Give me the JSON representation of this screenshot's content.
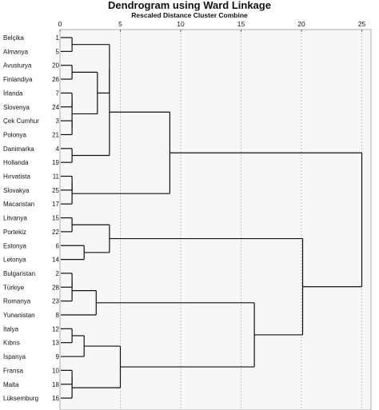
{
  "chart_data": {
    "type": "dendrogram",
    "title": "Dendrogram using Ward Linkage",
    "subtitle": "Rescaled Distance Cluster Combine",
    "xlim": [
      0,
      25
    ],
    "xticks": [
      0,
      5,
      10,
      15,
      20,
      25
    ],
    "grid": true,
    "leaves": [
      {
        "label": "Belçika",
        "case": 1
      },
      {
        "label": "Almanya",
        "case": 5
      },
      {
        "label": "Avusturya",
        "case": 20
      },
      {
        "label": "Finlandiya",
        "case": 26
      },
      {
        "label": "İrlanda",
        "case": 7
      },
      {
        "label": "Slovenya",
        "case": 24
      },
      {
        "label": "Çek Cumhur",
        "case": 3
      },
      {
        "label": "Polonya",
        "case": 21
      },
      {
        "label": "Danimarka",
        "case": 4
      },
      {
        "label": "Hollanda",
        "case": 19
      },
      {
        "label": "Hırvatista",
        "case": 11
      },
      {
        "label": "Slovakya",
        "case": 25
      },
      {
        "label": "Macaristan",
        "case": 17
      },
      {
        "label": "Litvanya",
        "case": 15
      },
      {
        "label": "Portekiz",
        "case": 22
      },
      {
        "label": "Estonya",
        "case": 6
      },
      {
        "label": "Letonya",
        "case": 14
      },
      {
        "label": "Bulgaristan",
        "case": 2
      },
      {
        "label": "Türkiye",
        "case": 28
      },
      {
        "label": "Romanya",
        "case": 23
      },
      {
        "label": "Yunanistan",
        "case": 8
      },
      {
        "label": "İtalya",
        "case": 12
      },
      {
        "label": "Kıbrıs",
        "case": 13
      },
      {
        "label": "İspanya",
        "case": 9
      },
      {
        "label": "Fransa",
        "case": 10
      },
      {
        "label": "Malta",
        "case": 18
      },
      {
        "label": "Lüksemburg",
        "case": 16
      }
    ],
    "merges": [
      {
        "id": "A",
        "children": [
          "L0",
          "L1"
        ],
        "height": 1.0
      },
      {
        "id": "B",
        "children": [
          "L2",
          "L3"
        ],
        "height": 1.0
      },
      {
        "id": "C",
        "children": [
          "L4",
          "L5"
        ],
        "height": 1.0
      },
      {
        "id": "D",
        "children": [
          "L6",
          "L7"
        ],
        "height": 1.0
      },
      {
        "id": "E",
        "children": [
          "C",
          "D"
        ],
        "height": 1.0
      },
      {
        "id": "F",
        "children": [
          "B",
          "E"
        ],
        "height": 3.1
      },
      {
        "id": "G",
        "children": [
          "A",
          "F"
        ],
        "height": 4.1
      },
      {
        "id": "H",
        "children": [
          "L8",
          "L9"
        ],
        "height": 1.0
      },
      {
        "id": "I",
        "children": [
          "G",
          "H"
        ],
        "height": 4.1
      },
      {
        "id": "J",
        "children": [
          "L10",
          "L11"
        ],
        "height": 1.0
      },
      {
        "id": "K",
        "children": [
          "J",
          "L12"
        ],
        "height": 1.0
      },
      {
        "id": "L",
        "children": [
          "I",
          "K"
        ],
        "height": 9.1
      },
      {
        "id": "M",
        "children": [
          "L13",
          "L14"
        ],
        "height": 1.0
      },
      {
        "id": "N",
        "children": [
          "L15",
          "L16"
        ],
        "height": 2.0
      },
      {
        "id": "O",
        "children": [
          "M",
          "N"
        ],
        "height": 4.1
      },
      {
        "id": "P",
        "children": [
          "L17",
          "L18"
        ],
        "height": 1.0
      },
      {
        "id": "Q",
        "children": [
          "P",
          "L19"
        ],
        "height": 1.0
      },
      {
        "id": "R",
        "children": [
          "Q",
          "L20"
        ],
        "height": 3.0
      },
      {
        "id": "S",
        "children": [
          "L21",
          "L22"
        ],
        "height": 1.0
      },
      {
        "id": "T",
        "children": [
          "S",
          "L23"
        ],
        "height": 2.0
      },
      {
        "id": "U",
        "children": [
          "L24",
          "L25"
        ],
        "height": 1.0
      },
      {
        "id": "V",
        "children": [
          "U",
          "L26"
        ],
        "height": 1.0
      },
      {
        "id": "W",
        "children": [
          "T",
          "V"
        ],
        "height": 5.0
      },
      {
        "id": "X",
        "children": [
          "R",
          "W"
        ],
        "height": 16.1
      },
      {
        "id": "Y",
        "children": [
          "O",
          "X"
        ],
        "height": 20.1
      },
      {
        "id": "Z",
        "children": [
          "L",
          "Y"
        ],
        "height": 25.0
      }
    ]
  }
}
